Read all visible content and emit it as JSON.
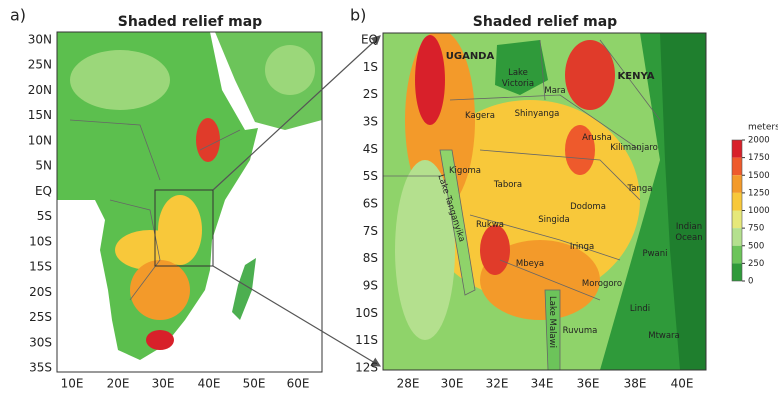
{
  "panels": [
    {
      "letter": "a)",
      "title": "Shaded relief map",
      "lat_labels": [
        "30N",
        "25N",
        "20N",
        "15N",
        "10N",
        "5N",
        "EQ",
        "5S",
        "10S",
        "15S",
        "20S",
        "25S",
        "30S",
        "35S"
      ],
      "lon_labels": [
        "10E",
        "20E",
        "30E",
        "40E",
        "50E",
        "60E"
      ]
    },
    {
      "letter": "b)",
      "title": "Shaded relief map",
      "lat_labels": [
        "EQ",
        "1S",
        "2S",
        "3S",
        "4S",
        "5S",
        "6S",
        "7S",
        "8S",
        "9S",
        "10S",
        "11S",
        "12S"
      ],
      "lon_labels": [
        "28E",
        "30E",
        "32E",
        "34E",
        "36E",
        "38E",
        "40E"
      ],
      "places": [
        {
          "lines": [
            "UGANDA"
          ]
        },
        {
          "lines": [
            "Lake",
            "Victoria"
          ]
        },
        {
          "lines": [
            "KENYA"
          ]
        },
        {
          "lines": [
            "Mara"
          ]
        },
        {
          "lines": [
            "Kagera"
          ]
        },
        {
          "lines": [
            "Shinyanga"
          ]
        },
        {
          "lines": [
            "Arusha"
          ]
        },
        {
          "lines": [
            "Kilimanjaro"
          ]
        },
        {
          "lines": [
            "Kigoma"
          ]
        },
        {
          "lines": [
            "Tabora"
          ]
        },
        {
          "lines": [
            "Tanga"
          ]
        },
        {
          "lines": [
            "Dodoma"
          ]
        },
        {
          "lines": [
            "Singida"
          ]
        },
        {
          "lines": [
            "Rukwa"
          ]
        },
        {
          "lines": [
            "Indian",
            "Ocean"
          ]
        },
        {
          "lines": [
            "Iringa"
          ]
        },
        {
          "lines": [
            "Pwani"
          ]
        },
        {
          "lines": [
            "Mbeya"
          ]
        },
        {
          "lines": [
            "Morogoro"
          ]
        },
        {
          "lines": [
            "Lindi"
          ]
        },
        {
          "lines": [
            "Ruvuma"
          ]
        },
        {
          "lines": [
            "Mtwara"
          ]
        },
        {
          "lines": [
            "Lake Tanganyika"
          ]
        },
        {
          "lines": [
            "Lake Malawi"
          ]
        }
      ]
    }
  ],
  "colorbar": {
    "title": "meters",
    "ticks": [
      2000,
      1750,
      1500,
      1250,
      1000,
      750,
      500,
      250,
      0
    ],
    "colors": [
      "#d8202a",
      "#ee5a2c",
      "#f39a2a",
      "#f8c83a",
      "#e6e87a",
      "#b4e08e",
      "#6cc45a",
      "#2f9a3a"
    ]
  }
}
